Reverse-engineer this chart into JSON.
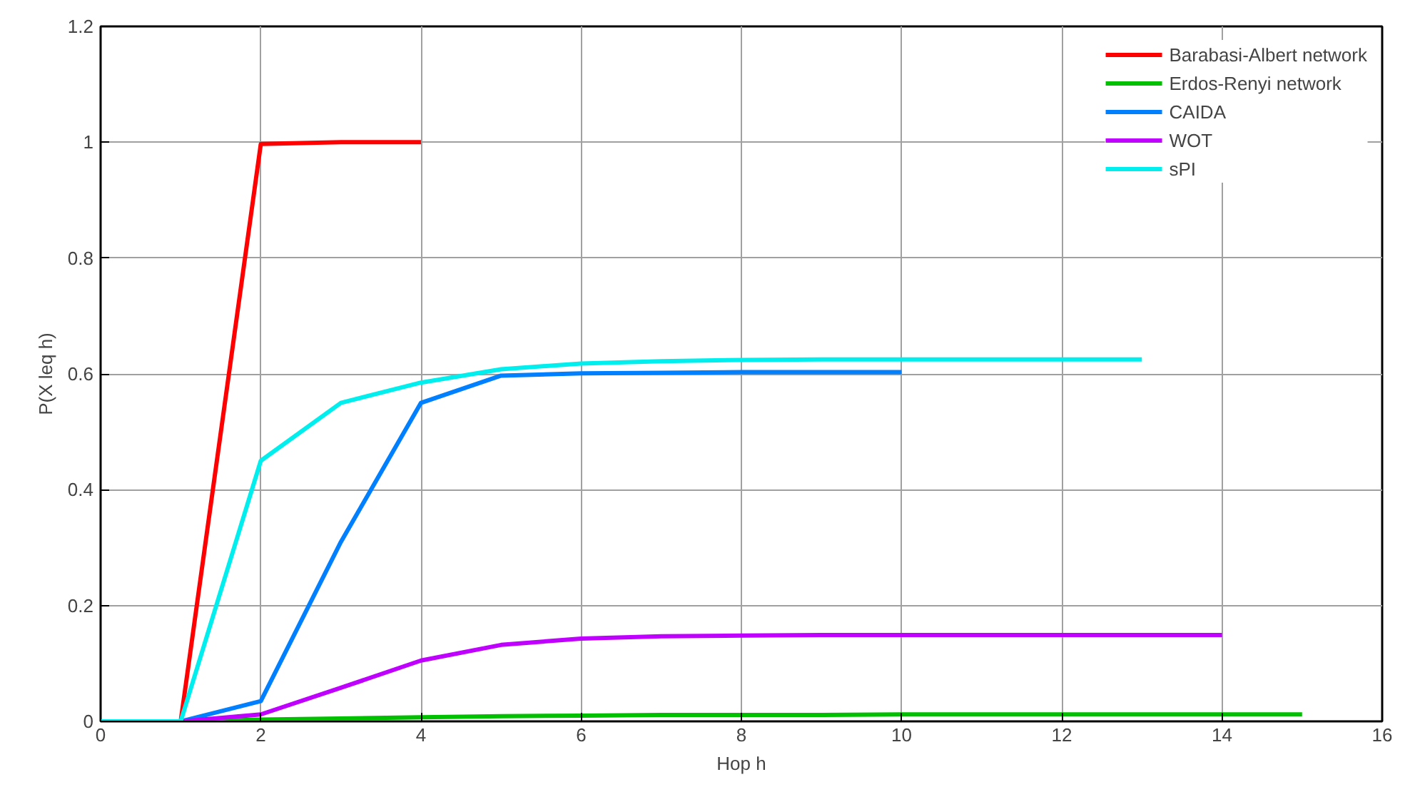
{
  "chart_data": {
    "type": "line",
    "xlabel": "Hop h",
    "ylabel": "P(X leq h)",
    "xlim": [
      0,
      16
    ],
    "ylim": [
      0,
      1.2
    ],
    "xticks": [
      0,
      2,
      4,
      6,
      8,
      10,
      12,
      14,
      16
    ],
    "yticks": [
      0,
      0.2,
      0.4,
      0.6,
      0.8,
      1,
      1.2
    ],
    "grid": true,
    "legend": "top right",
    "marker": "none",
    "line_style": "solid",
    "series": [
      {
        "name": "Barabasi-Albert network",
        "color": "#ff0000",
        "x": [
          0,
          1,
          2,
          3,
          4
        ],
        "values": [
          0,
          0,
          0.997,
          1.0,
          1.0
        ]
      },
      {
        "name": "Erdos-Renyi network",
        "color": "#00c000",
        "x": [
          0,
          1,
          2,
          3,
          4,
          5,
          6,
          7,
          8,
          9,
          10,
          11,
          12,
          13,
          14,
          15
        ],
        "values": [
          0,
          0,
          0.003,
          0.005,
          0.007,
          0.009,
          0.01,
          0.011,
          0.011,
          0.011,
          0.012,
          0.012,
          0.012,
          0.012,
          0.012,
          0.012
        ]
      },
      {
        "name": "CAIDA",
        "color": "#0080ff",
        "x": [
          0,
          1,
          2,
          3,
          4,
          5,
          6,
          7,
          8,
          9,
          10
        ],
        "values": [
          0,
          0,
          0.035,
          0.31,
          0.55,
          0.597,
          0.601,
          0.602,
          0.603,
          0.603,
          0.603
        ]
      },
      {
        "name": "WOT",
        "color": "#c000ff",
        "x": [
          0,
          1,
          2,
          3,
          4,
          5,
          6,
          7,
          8,
          9,
          10,
          11,
          12,
          13,
          14
        ],
        "values": [
          0,
          0,
          0.012,
          0.058,
          0.105,
          0.132,
          0.143,
          0.147,
          0.148,
          0.149,
          0.149,
          0.149,
          0.149,
          0.149,
          0.149
        ]
      },
      {
        "name": "sPI",
        "color": "#00eeee",
        "x": [
          0,
          1,
          2,
          3,
          4,
          5,
          6,
          7,
          8,
          9,
          10,
          11,
          12,
          13
        ],
        "values": [
          0,
          0,
          0.45,
          0.55,
          0.585,
          0.608,
          0.618,
          0.622,
          0.624,
          0.625,
          0.625,
          0.625,
          0.625,
          0.625
        ]
      }
    ]
  }
}
